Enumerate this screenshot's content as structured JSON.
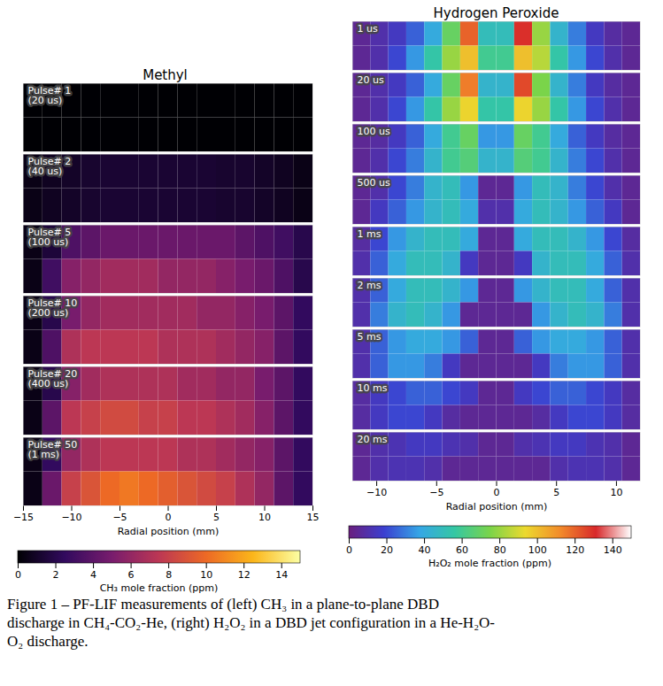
{
  "chart_data": [
    {
      "type": "heatmap",
      "title": "Methyl",
      "xlabel": "Radial position (mm)",
      "xlim": [
        -15,
        15
      ],
      "xticks": [
        -15,
        -10,
        -5,
        0,
        5,
        10,
        15
      ],
      "x_edges": [
        -15,
        -13,
        -11,
        -9,
        -7,
        -5,
        -3,
        -1,
        1,
        3,
        5,
        7,
        9,
        11,
        13,
        15
      ],
      "panels": [
        {
          "label": [
            "Pulse# 1",
            "(20 us)"
          ],
          "cells": [
            [
              0,
              0,
              0,
              0,
              0,
              0,
              0,
              0,
              0,
              0,
              0,
              0,
              0,
              0,
              0
            ],
            [
              0,
              0,
              0,
              0,
              0,
              0,
              0,
              0,
              0,
              0,
              0,
              0,
              0,
              0,
              0
            ]
          ]
        },
        {
          "label": [
            "Pulse# 2",
            "(40 us)"
          ],
          "cells": [
            [
              0.5,
              0.8,
              1,
              1.2,
              1.3,
              1.3,
              1.3,
              1.3,
              1.3,
              1.3,
              1.2,
              1.2,
              1,
              0.8,
              0.5
            ],
            [
              0.5,
              0.8,
              1,
              1.2,
              1.3,
              1.3,
              1.3,
              1.3,
              1.3,
              1.3,
              1.2,
              1.2,
              1,
              0.8,
              0.5
            ]
          ]
        },
        {
          "label": [
            "Pulse# 5",
            "(100 us)"
          ],
          "cells": [
            [
              0.5,
              1.5,
              3.5,
              4,
              4.5,
              4.5,
              4.5,
              4.5,
              4.5,
              4.5,
              4.5,
              4,
              3.5,
              3,
              2
            ],
            [
              0.5,
              3,
              5.5,
              6,
              6.5,
              6.5,
              6.5,
              6,
              6,
              6,
              5.5,
              5,
              4.5,
              3.5,
              2
            ]
          ]
        },
        {
          "label": [
            "Pulse# 10",
            "(200 us)"
          ],
          "cells": [
            [
              0.5,
              2,
              5,
              6,
              6.5,
              6.5,
              6.5,
              6.5,
              6.5,
              6,
              6,
              5.5,
              5,
              4,
              2.5
            ],
            [
              0.5,
              3.5,
              7,
              7.5,
              7.5,
              7.5,
              7.5,
              7,
              7,
              7,
              6.5,
              6,
              5.5,
              4,
              2.5
            ]
          ]
        },
        {
          "label": [
            "Pulse# 20",
            "(400 us)"
          ],
          "cells": [
            [
              0.5,
              2,
              5.5,
              6.5,
              7,
              7,
              7,
              7,
              6.5,
              6.5,
              6,
              6,
              5,
              4,
              2.5
            ],
            [
              0.5,
              4,
              7.5,
              8,
              8.5,
              8.5,
              8,
              8,
              7.5,
              7.5,
              7,
              6.5,
              5.5,
              4,
              2.5
            ]
          ]
        },
        {
          "label": [
            "Pulse# 50",
            "(1 ms)"
          ],
          "cells": [
            [
              0.5,
              2.5,
              6,
              7,
              7.5,
              7.5,
              7.5,
              7.5,
              7,
              7,
              6.5,
              6,
              5.5,
              4,
              2.5
            ],
            [
              0.5,
              4.5,
              8,
              9,
              10,
              10.5,
              10,
              9.5,
              9,
              8.5,
              8,
              7,
              6,
              4,
              2.5
            ]
          ]
        }
      ],
      "colorbar": {
        "label": "CH₃ mole fraction (ppm)",
        "lim": [
          0,
          15
        ],
        "ticks": [
          0,
          2,
          4,
          6,
          8,
          10,
          12,
          14
        ],
        "colors": [
          "#000004",
          "#320a5e",
          "#781c6d",
          "#bc3754",
          "#ed6925",
          "#fbb61a",
          "#fcffa4"
        ]
      }
    },
    {
      "type": "heatmap",
      "title": "Hydrogen Peroxide",
      "xlabel": "Radial position (mm)",
      "xlim": [
        -12,
        12
      ],
      "xticks": [
        -10,
        -5,
        0,
        5,
        10
      ],
      "x_edges": [
        -12,
        -10.5,
        -9,
        -7.5,
        -6,
        -4.5,
        -3,
        -1.5,
        0,
        1.5,
        3,
        4.5,
        6,
        7.5,
        9,
        10.5,
        12
      ],
      "panels": [
        {
          "label": [
            "1 us"
          ],
          "cells": [
            [
              5,
              10,
              15,
              25,
              40,
              70,
              120,
              50,
              50,
              130,
              80,
              45,
              30,
              15,
              8,
              5
            ],
            [
              5,
              10,
              20,
              35,
              55,
              80,
              100,
              60,
              60,
              100,
              85,
              55,
              35,
              20,
              10,
              5
            ]
          ]
        },
        {
          "label": [
            "20 us"
          ],
          "cells": [
            [
              5,
              10,
              15,
              25,
              40,
              70,
              115,
              45,
              45,
              125,
              75,
              45,
              30,
              15,
              8,
              5
            ],
            [
              5,
              10,
              20,
              35,
              55,
              80,
              95,
              55,
              55,
              95,
              80,
              55,
              35,
              20,
              10,
              5
            ]
          ]
        },
        {
          "label": [
            "100 us"
          ],
          "cells": [
            [
              5,
              8,
              15,
              25,
              40,
              60,
              70,
              35,
              35,
              70,
              60,
              40,
              25,
              15,
              8,
              5
            ],
            [
              5,
              10,
              20,
              30,
              45,
              60,
              65,
              45,
              45,
              65,
              60,
              45,
              30,
              20,
              10,
              5
            ]
          ]
        },
        {
          "label": [
            "500 us"
          ],
          "cells": [
            [
              5,
              10,
              20,
              30,
              45,
              50,
              35,
              5,
              5,
              35,
              50,
              45,
              30,
              20,
              10,
              5
            ],
            [
              5,
              15,
              25,
              35,
              45,
              50,
              40,
              10,
              10,
              40,
              50,
              45,
              35,
              25,
              15,
              5
            ]
          ]
        },
        {
          "label": [
            "1 ms"
          ],
          "cells": [
            [
              8,
              20,
              35,
              45,
              50,
              50,
              40,
              5,
              5,
              40,
              50,
              50,
              45,
              35,
              20,
              8
            ],
            [
              10,
              25,
              40,
              50,
              50,
              45,
              15,
              5,
              5,
              15,
              45,
              50,
              50,
              40,
              25,
              10
            ]
          ]
        },
        {
          "label": [
            "2 ms"
          ],
          "cells": [
            [
              10,
              25,
              40,
              50,
              50,
              45,
              35,
              5,
              5,
              35,
              45,
              50,
              50,
              40,
              25,
              10
            ],
            [
              10,
              30,
              45,
              50,
              45,
              35,
              5,
              5,
              5,
              5,
              35,
              45,
              50,
              45,
              30,
              10
            ]
          ]
        },
        {
          "label": [
            "5 ms"
          ],
          "cells": [
            [
              10,
              25,
              35,
              40,
              40,
              35,
              25,
              5,
              5,
              25,
              35,
              40,
              40,
              35,
              25,
              10
            ],
            [
              10,
              25,
              35,
              35,
              30,
              15,
              5,
              5,
              5,
              5,
              15,
              30,
              35,
              35,
              25,
              10
            ]
          ]
        },
        {
          "label": [
            "10 ms"
          ],
          "cells": [
            [
              8,
              15,
              20,
              25,
              25,
              20,
              15,
              5,
              5,
              15,
              20,
              25,
              25,
              20,
              15,
              8
            ],
            [
              8,
              15,
              20,
              20,
              15,
              8,
              5,
              5,
              5,
              5,
              8,
              15,
              20,
              20,
              15,
              8
            ]
          ]
        },
        {
          "label": [
            "20 ms"
          ],
          "cells": [
            [
              5,
              10,
              12,
              15,
              15,
              12,
              10,
              5,
              5,
              10,
              12,
              15,
              15,
              12,
              10,
              5
            ],
            [
              5,
              10,
              12,
              12,
              10,
              5,
              5,
              5,
              5,
              5,
              5,
              10,
              12,
              12,
              10,
              5
            ]
          ]
        }
      ],
      "colorbar": {
        "label": "H₂O₂ mole fraction (ppm)",
        "lim": [
          0,
          150
        ],
        "ticks": [
          0,
          20,
          40,
          60,
          80,
          100,
          120,
          140
        ],
        "colors": [
          "#6a1f7e",
          "#3b3fd0",
          "#35a6e6",
          "#34c7a3",
          "#7ad44a",
          "#ecd92e",
          "#f28a2a",
          "#d8282a",
          "#ffffff"
        ]
      }
    }
  ],
  "caption": "Figure 1 – PF-LIF measurements of (left) CH₃ in a plane-to-plane DBD discharge in CH₄-CO₂-He, (right) H₂O₂ in a DBD jet configuration in a He-H₂O-O₂ discharge."
}
